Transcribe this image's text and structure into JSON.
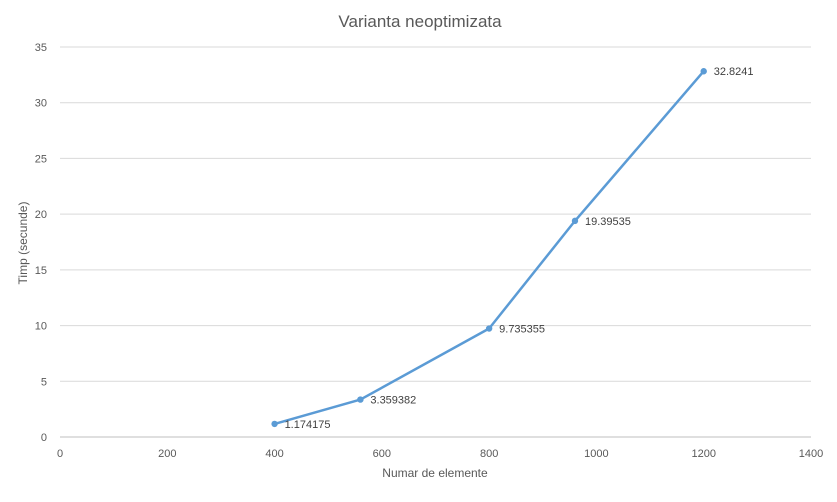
{
  "chart_data": {
    "type": "line",
    "title": "Varianta neoptimizata",
    "xlabel": "Numar de elemente",
    "ylabel": "Timp (secunde)",
    "xlim": [
      0,
      1400
    ],
    "ylim": [
      0,
      35
    ],
    "x_ticks": [
      "0",
      "200",
      "400",
      "600",
      "800",
      "1000",
      "1200",
      "1400"
    ],
    "y_ticks": [
      "0",
      "5",
      "10",
      "15",
      "20",
      "25",
      "30",
      "35"
    ],
    "grid": "horizontal",
    "legend": "none",
    "series": [
      {
        "color": "#5b9bd5",
        "points": [
          {
            "x": 400,
            "y": 1.174175,
            "label": "1.174175"
          },
          {
            "x": 560,
            "y": 3.359382,
            "label": "3.359382"
          },
          {
            "x": 800,
            "y": 9.735355,
            "label": "9.735355"
          },
          {
            "x": 960,
            "y": 19.39535,
            "label": "19.39535"
          },
          {
            "x": 1200,
            "y": 32.8241,
            "label": "32.8241"
          }
        ]
      }
    ]
  }
}
